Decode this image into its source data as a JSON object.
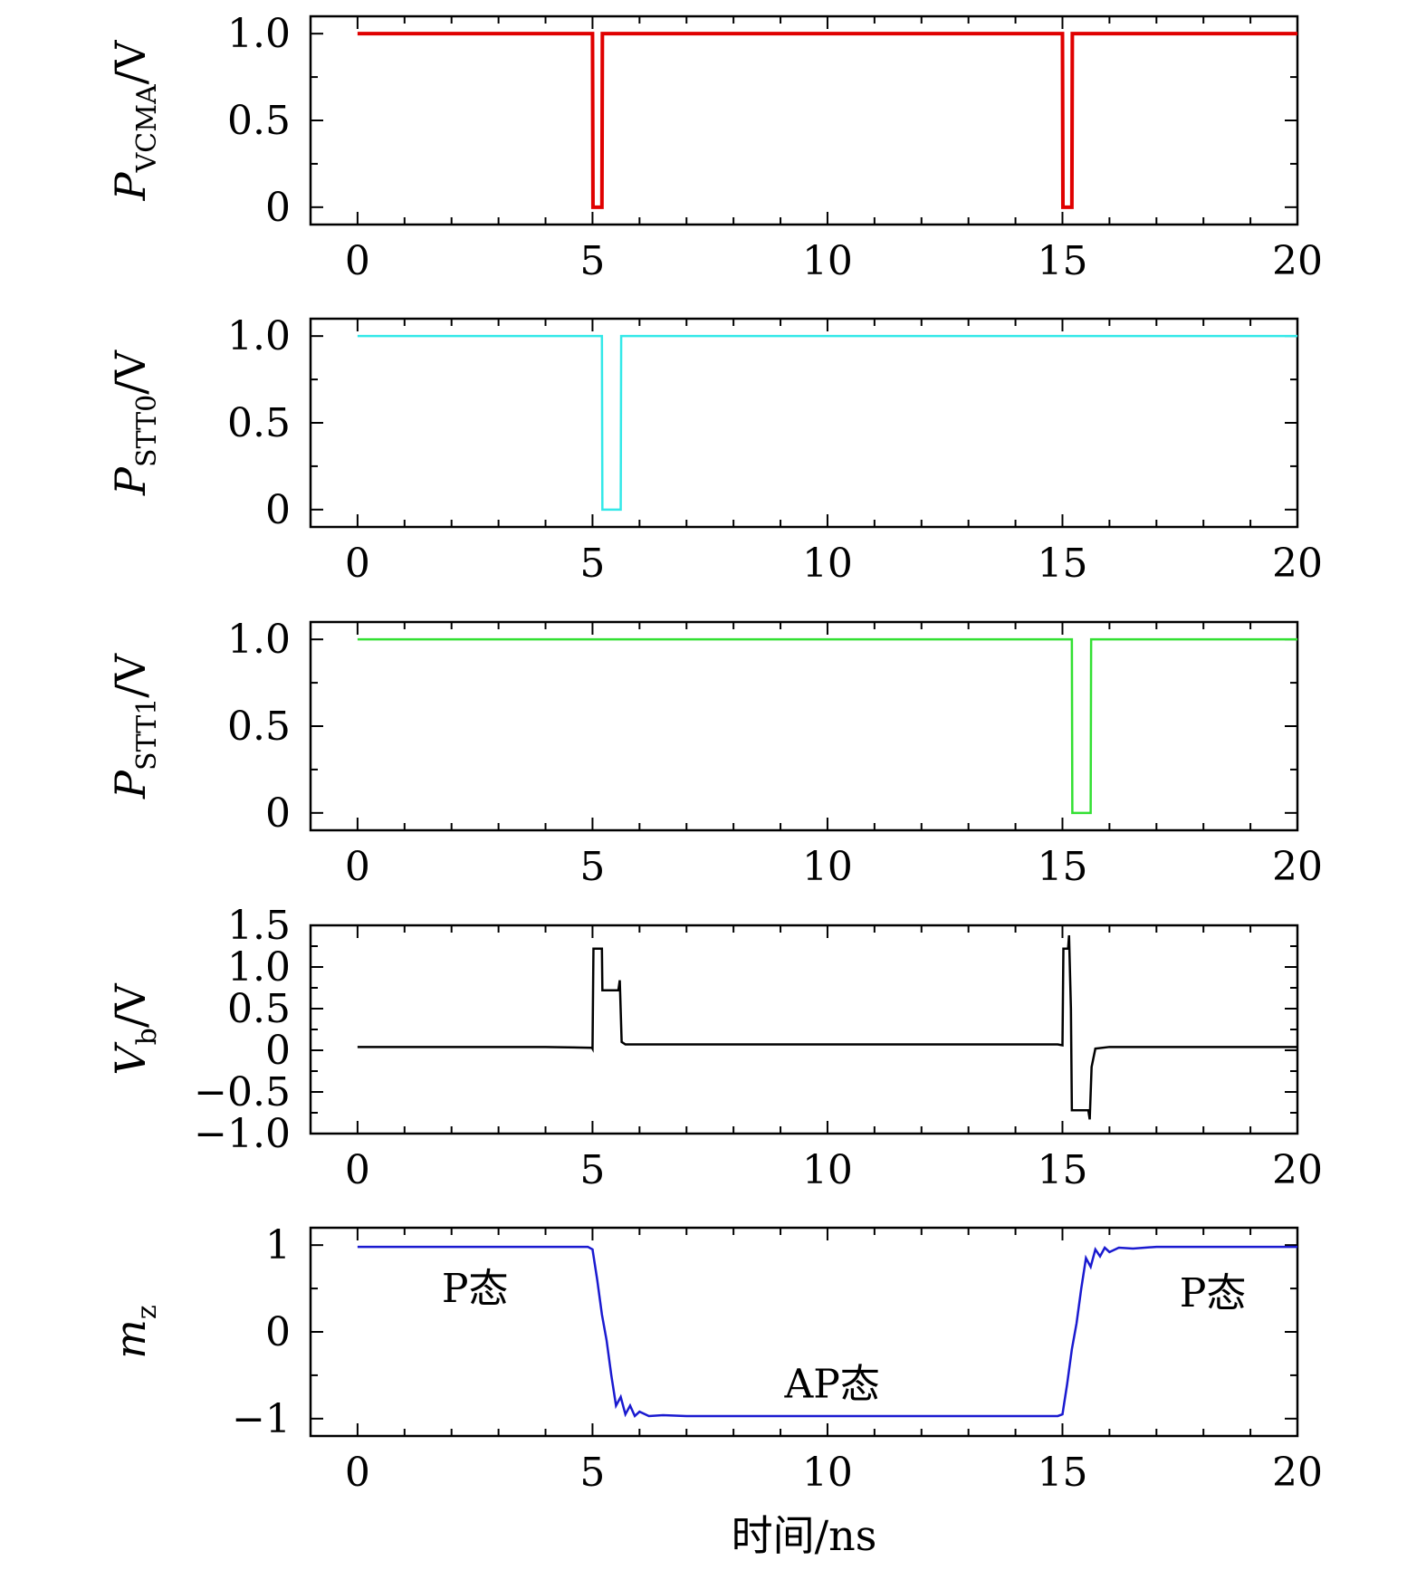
{
  "chart_data": [
    {
      "type": "line",
      "ylabel": {
        "main": "P",
        "sub": "VCMA",
        "unit": "/V"
      },
      "xlim": [
        -1,
        20
      ],
      "ylim": [
        -0.1,
        1.1
      ],
      "xticks": [
        "0",
        "5",
        "10",
        "15",
        "20"
      ],
      "yticks": [
        {
          "value": 0,
          "label": "0"
        },
        {
          "value": 0.5,
          "label": "0.5"
        },
        {
          "value": 1.0,
          "label": "1.0"
        }
      ],
      "color": "#e00000",
      "series": [
        {
          "x": [
            0,
            5.0,
            5.01,
            5.2,
            5.21,
            15.0,
            15.01,
            15.2,
            15.21,
            20
          ],
          "y": [
            1,
            1,
            0,
            0,
            1,
            1,
            0,
            0,
            1,
            1
          ]
        }
      ]
    },
    {
      "type": "line",
      "ylabel": {
        "main": "P",
        "sub": "STT0",
        "unit": "/V"
      },
      "xlim": [
        -1,
        20
      ],
      "ylim": [
        -0.1,
        1.1
      ],
      "xticks": [
        "0",
        "5",
        "10",
        "15",
        "20"
      ],
      "yticks": [
        {
          "value": 0,
          "label": "0"
        },
        {
          "value": 0.5,
          "label": "0.5"
        },
        {
          "value": 1.0,
          "label": "1.0"
        }
      ],
      "color": "#33e8e8",
      "series": [
        {
          "x": [
            0,
            5.2,
            5.21,
            5.6,
            5.61,
            20
          ],
          "y": [
            1,
            1,
            0,
            0,
            1,
            1
          ]
        }
      ]
    },
    {
      "type": "line",
      "ylabel": {
        "main": "P",
        "sub": "STT1",
        "unit": "/V"
      },
      "xlim": [
        -1,
        20
      ],
      "ylim": [
        -0.1,
        1.1
      ],
      "xticks": [
        "0",
        "5",
        "10",
        "15",
        "20"
      ],
      "yticks": [
        {
          "value": 0,
          "label": "0"
        },
        {
          "value": 0.5,
          "label": "0.5"
        },
        {
          "value": 1.0,
          "label": "1.0"
        }
      ],
      "color": "#33e033",
      "series": [
        {
          "x": [
            0,
            15.2,
            15.21,
            15.6,
            15.61,
            20
          ],
          "y": [
            1,
            1,
            0,
            0,
            1,
            1
          ]
        }
      ]
    },
    {
      "type": "line",
      "ylabel": {
        "main": "V",
        "sub": "b",
        "unit": "/V"
      },
      "xlim": [
        -1,
        20
      ],
      "ylim": [
        -1.0,
        1.5
      ],
      "xticks": [
        "0",
        "5",
        "10",
        "15",
        "20"
      ],
      "yticks": [
        {
          "value": -1.0,
          "label": "−1.0"
        },
        {
          "value": -0.5,
          "label": "−0.5"
        },
        {
          "value": 0,
          "label": "0"
        },
        {
          "value": 0.5,
          "label": "0.5"
        },
        {
          "value": 1.0,
          "label": "1.0"
        },
        {
          "value": 1.5,
          "label": "1.5"
        }
      ],
      "color": "#000000",
      "series": [
        {
          "x": [
            0,
            4.0,
            4.99,
            5.0,
            5.02,
            5.2,
            5.21,
            5.55,
            5.58,
            5.62,
            5.7,
            6.0,
            10.0,
            14.9,
            15.0,
            15.02,
            15.12,
            15.14,
            15.18,
            15.2,
            15.22,
            15.55,
            15.58,
            15.62,
            15.7,
            16.0,
            20
          ],
          "y": [
            0.04,
            0.04,
            0.03,
            0.02,
            1.22,
            1.22,
            0.72,
            0.72,
            0.84,
            0.1,
            0.07,
            0.07,
            0.07,
            0.07,
            0.06,
            1.22,
            1.22,
            1.38,
            0.5,
            -0.72,
            -0.72,
            -0.72,
            -0.83,
            -0.2,
            0.02,
            0.04,
            0.04
          ]
        }
      ]
    },
    {
      "type": "line",
      "ylabel": {
        "main": "m",
        "sub": "z",
        "unit": ""
      },
      "xlim": [
        -1,
        20
      ],
      "ylim": [
        -1.2,
        1.2
      ],
      "xticks": [
        "0",
        "5",
        "10",
        "15",
        "20"
      ],
      "yticks": [
        {
          "value": -1,
          "label": "−1"
        },
        {
          "value": 0,
          "label": "0"
        },
        {
          "value": 1,
          "label": "1"
        }
      ],
      "color": "#1a1ad0",
      "annotations": [
        {
          "text": "P态",
          "x": 2.5,
          "y": 0.5
        },
        {
          "text": "AP态",
          "x": 10.1,
          "y": -0.6
        },
        {
          "text": "P态",
          "x": 18.2,
          "y": 0.45
        }
      ],
      "series": [
        {
          "x": [
            0,
            0.5,
            1,
            2,
            3,
            4,
            4.9,
            5.0,
            5.1,
            5.2,
            5.3,
            5.4,
            5.5,
            5.6,
            5.7,
            5.8,
            5.9,
            6.0,
            6.2,
            6.5,
            7,
            8,
            10,
            12,
            14,
            14.9,
            15.0,
            15.1,
            15.2,
            15.3,
            15.4,
            15.5,
            15.6,
            15.7,
            15.8,
            15.9,
            16.0,
            16.2,
            16.5,
            17,
            18,
            20
          ],
          "y": [
            0.98,
            0.98,
            0.98,
            0.98,
            0.98,
            0.98,
            0.98,
            0.95,
            0.6,
            0.2,
            -0.1,
            -0.5,
            -0.85,
            -0.75,
            -0.95,
            -0.85,
            -0.97,
            -0.92,
            -0.97,
            -0.96,
            -0.97,
            -0.97,
            -0.97,
            -0.97,
            -0.97,
            -0.97,
            -0.95,
            -0.6,
            -0.2,
            0.1,
            0.5,
            0.85,
            0.75,
            0.95,
            0.87,
            0.97,
            0.92,
            0.97,
            0.96,
            0.98,
            0.98,
            0.98
          ]
        }
      ]
    }
  ],
  "xaxis_label": "时间/ns"
}
